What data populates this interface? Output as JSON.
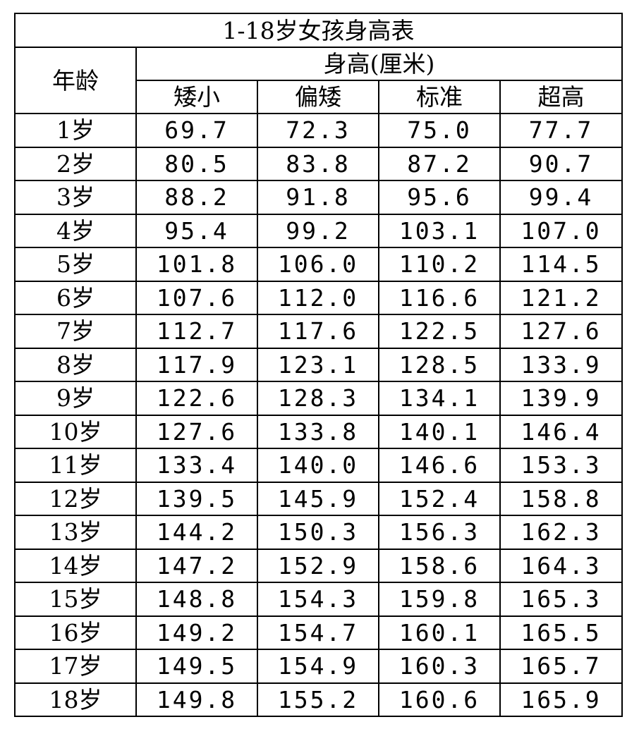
{
  "table": {
    "title": "1-18岁女孩身高表",
    "age_header": "年龄",
    "height_header": "身高(厘米)",
    "columns": [
      "矮小",
      "偏矮",
      "标准",
      "超高"
    ],
    "rows": [
      {
        "age": "1岁",
        "values": [
          "69.7",
          "72.3",
          "75.0",
          "77.7"
        ]
      },
      {
        "age": "2岁",
        "values": [
          "80.5",
          "83.8",
          "87.2",
          "90.7"
        ]
      },
      {
        "age": "3岁",
        "values": [
          "88.2",
          "91.8",
          "95.6",
          "99.4"
        ]
      },
      {
        "age": "4岁",
        "values": [
          "95.4",
          "99.2",
          "103.1",
          "107.0"
        ]
      },
      {
        "age": "5岁",
        "values": [
          "101.8",
          "106.0",
          "110.2",
          "114.5"
        ]
      },
      {
        "age": "6岁",
        "values": [
          "107.6",
          "112.0",
          "116.6",
          "121.2"
        ]
      },
      {
        "age": "7岁",
        "values": [
          "112.7",
          "117.6",
          "122.5",
          "127.6"
        ]
      },
      {
        "age": "8岁",
        "values": [
          "117.9",
          "123.1",
          "128.5",
          "133.9"
        ]
      },
      {
        "age": "9岁",
        "values": [
          "122.6",
          "128.3",
          "134.1",
          "139.9"
        ]
      },
      {
        "age": "10岁",
        "values": [
          "127.6",
          "133.8",
          "140.1",
          "146.4"
        ]
      },
      {
        "age": "11岁",
        "values": [
          "133.4",
          "140.0",
          "146.6",
          "153.3"
        ]
      },
      {
        "age": "12岁",
        "values": [
          "139.5",
          "145.9",
          "152.4",
          "158.8"
        ]
      },
      {
        "age": "13岁",
        "values": [
          "144.2",
          "150.3",
          "156.3",
          "162.3"
        ]
      },
      {
        "age": "14岁",
        "values": [
          "147.2",
          "152.9",
          "158.6",
          "164.3"
        ]
      },
      {
        "age": "15岁",
        "values": [
          "148.8",
          "154.3",
          "159.8",
          "165.3"
        ]
      },
      {
        "age": "16岁",
        "values": [
          "149.2",
          "154.7",
          "160.1",
          "165.5"
        ]
      },
      {
        "age": "17岁",
        "values": [
          "149.5",
          "154.9",
          "160.3",
          "165.7"
        ]
      },
      {
        "age": "18岁",
        "values": [
          "149.8",
          "155.2",
          "160.6",
          "165.9"
        ]
      }
    ]
  }
}
